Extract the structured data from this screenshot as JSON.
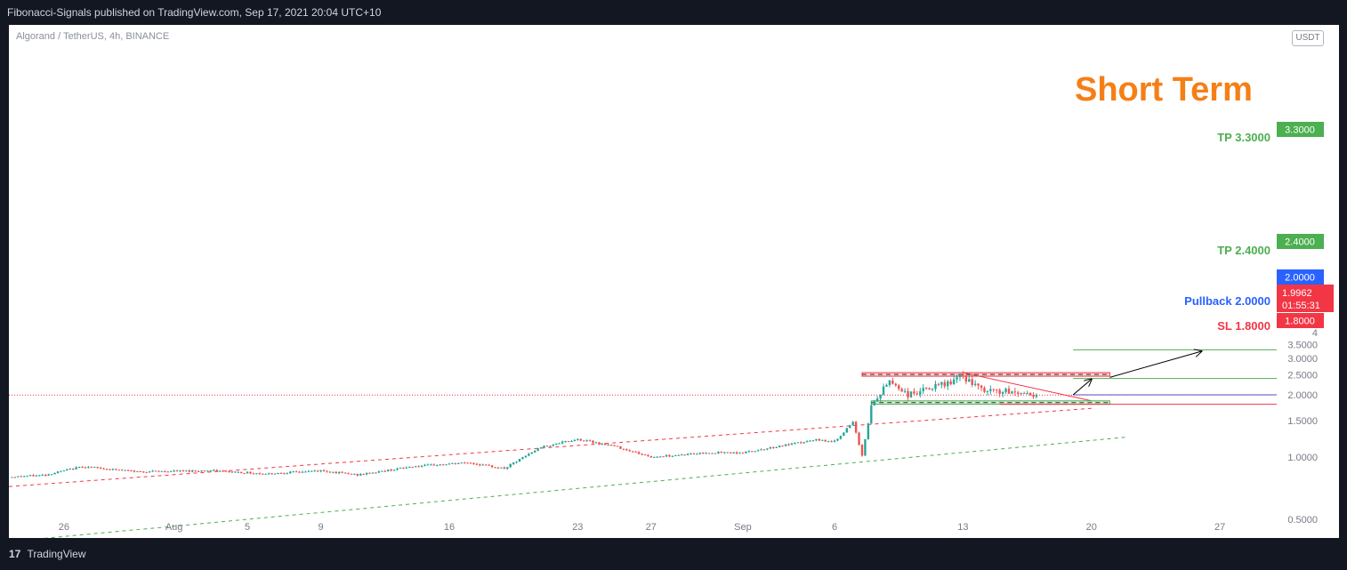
{
  "header": {
    "text": "Fibonacci-Signals published on TradingView.com, Sep 17, 2021 20:04 UTC+10"
  },
  "symbol": {
    "text": "Algorand / TetherUS, 4h, BINANCE"
  },
  "currency_badge": "USDT",
  "footer": {
    "logo": "17",
    "brand": "TradingView"
  },
  "annotations": {
    "title": "Short Term",
    "tp2": "TP 3.3000",
    "tp1": "TP 2.4000",
    "pullback": "Pullback 2.0000",
    "sl": "SL 1.8000"
  },
  "price_tags": {
    "tp2": "3.3000",
    "tp1": "2.4000",
    "pullback": "2.0000",
    "last_price": "1.9962",
    "countdown": "01:55:31",
    "sl": "1.8000"
  },
  "colors": {
    "green": "#4caf50",
    "red": "#f23645",
    "blue": "#2962ff",
    "orange": "#f57f17",
    "axis_text": "#787b86",
    "up_candle": "#26a69a",
    "down_candle": "#ef5350"
  },
  "chart_data": {
    "type": "candlestick",
    "title": "Algorand / TetherUS, 4h, BINANCE",
    "xlabel": "",
    "ylabel": "",
    "y_axis_side": "right",
    "y_scale": "log",
    "y_ticks": [
      0.5,
      1.0,
      1.5,
      2.0,
      2.5,
      3.0,
      3.5,
      4.0
    ],
    "y_tick_labels": [
      "0.5000",
      "1.0000",
      "1.5000",
      "2.0000",
      "2.5000",
      "3.0000",
      "3.5000",
      "4"
    ],
    "x_tick_labels": [
      "26",
      "Aug",
      "5",
      "9",
      "16",
      "23",
      "27",
      "Sep",
      "6",
      "13",
      "20",
      "27"
    ],
    "x_ticks_dates": [
      "2021-07-26",
      "2021-08-01",
      "2021-08-05",
      "2021-08-09",
      "2021-08-16",
      "2021-08-23",
      "2021-08-27",
      "2021-09-01",
      "2021-09-06",
      "2021-09-13",
      "2021-09-20",
      "2021-09-27"
    ],
    "x_range": [
      "2021-07-23",
      "2021-09-30"
    ],
    "price_path": [
      {
        "date": "2021-07-23",
        "close": 0.8
      },
      {
        "date": "2021-07-25",
        "close": 0.82
      },
      {
        "date": "2021-07-27",
        "close": 0.9
      },
      {
        "date": "2021-07-30",
        "close": 0.85
      },
      {
        "date": "2021-08-03",
        "close": 0.86
      },
      {
        "date": "2021-08-06",
        "close": 0.83
      },
      {
        "date": "2021-08-09",
        "close": 0.86
      },
      {
        "date": "2021-08-11",
        "close": 0.82
      },
      {
        "date": "2021-08-14",
        "close": 0.9
      },
      {
        "date": "2021-08-17",
        "close": 0.94
      },
      {
        "date": "2021-08-19",
        "close": 0.88
      },
      {
        "date": "2021-08-21",
        "close": 1.12
      },
      {
        "date": "2021-08-23",
        "close": 1.22
      },
      {
        "date": "2021-08-25",
        "close": 1.13
      },
      {
        "date": "2021-08-27",
        "close": 1.0
      },
      {
        "date": "2021-08-30",
        "close": 1.05
      },
      {
        "date": "2021-09-01",
        "close": 1.05
      },
      {
        "date": "2021-09-03",
        "close": 1.13
      },
      {
        "date": "2021-09-05",
        "close": 1.21
      },
      {
        "date": "2021-09-06",
        "close": 1.19
      },
      {
        "date": "2021-09-07",
        "close": 1.47
      },
      {
        "date": "2021-09-07T12:00",
        "close": 1.02
      },
      {
        "date": "2021-09-08",
        "close": 1.75
      },
      {
        "date": "2021-09-09",
        "close": 2.35
      },
      {
        "date": "2021-09-10",
        "close": 2.0
      },
      {
        "date": "2021-09-12",
        "close": 2.25
      },
      {
        "date": "2021-09-13",
        "close": 2.45
      },
      {
        "date": "2021-09-14",
        "close": 2.1
      },
      {
        "date": "2021-09-16",
        "close": 2.05
      },
      {
        "date": "2021-09-17",
        "close": 1.9962
      }
    ],
    "last_price": 1.9962,
    "horizontal_levels": [
      {
        "label": "TP 3.3000",
        "value": 3.3,
        "color": "#4caf50"
      },
      {
        "label": "TP 2.4000",
        "value": 2.4,
        "color": "#4caf50"
      },
      {
        "label": "Pullback 2.0000",
        "value": 2.0,
        "color": "#2962ff"
      },
      {
        "label": "SL 1.8000",
        "value": 1.8,
        "color": "#f23645"
      }
    ],
    "zones": [
      {
        "type": "resistance",
        "from": 2.46,
        "to": 2.56,
        "color": "#f23645"
      },
      {
        "type": "support",
        "from": 1.8,
        "to": 1.87,
        "color": "#4caf50"
      }
    ],
    "trendlines": [
      {
        "style": "dashed",
        "color": "#f23645",
        "from": {
          "date": "2021-07-23",
          "price": 0.72
        },
        "to": {
          "date": "2021-09-20",
          "price": 1.72
        }
      },
      {
        "style": "dashed",
        "color": "#4caf50",
        "from": {
          "date": "2021-07-23",
          "price": 0.39
        },
        "to": {
          "date": "2021-09-22",
          "price": 1.25
        }
      },
      {
        "style": "solid",
        "color": "#f23645",
        "from": {
          "date": "2021-09-13",
          "price": 2.56
        },
        "to": {
          "date": "2021-09-20",
          "price": 1.87
        }
      }
    ],
    "projection_arrows": [
      {
        "from": {
          "date": "2021-09-19",
          "price": 2.0
        },
        "to": {
          "date": "2021-09-20",
          "price": 2.38
        }
      },
      {
        "from": {
          "date": "2021-09-21",
          "price": 2.43
        },
        "to": {
          "date": "2021-09-26",
          "price": 3.25
        }
      }
    ]
  }
}
